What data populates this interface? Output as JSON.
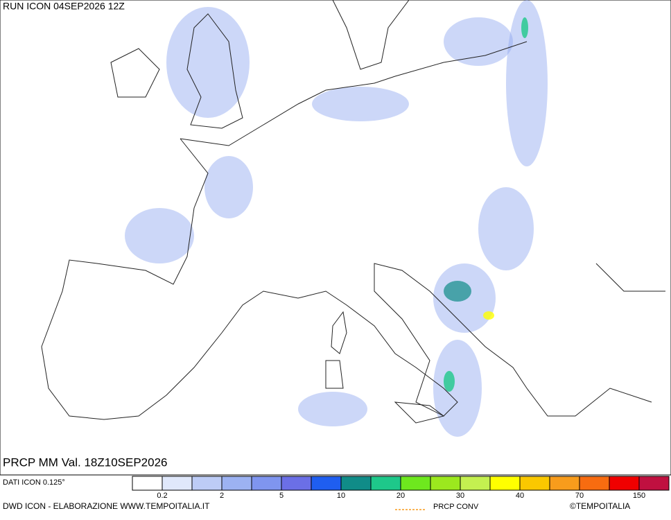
{
  "header": {
    "run": "RUN ICON 04SEP2026 12Z",
    "product": "PRCP MM Val. 18Z10SEP2026"
  },
  "footer": {
    "source": "DATI ICON 0.125°",
    "credit": "DWD ICON - ELABORAZIONE WWW.TEMPOITALIA.IT",
    "conv_legend": "PRCP CONV",
    "copyright": "©TEMPOITALIA"
  },
  "colorbar": {
    "colors": [
      "#ffffff",
      "#e0e8fb",
      "#bdccf6",
      "#9cb2f2",
      "#7f95ef",
      "#6b6fe6",
      "#1f5ef0",
      "#108c88",
      "#1ec88a",
      "#6ee81e",
      "#9ce81e",
      "#c4f050",
      "#ffff00",
      "#fac800",
      "#f89c1c",
      "#f86c10",
      "#f00000",
      "#c01040"
    ],
    "ticks": [
      0.2,
      2,
      5,
      10,
      20,
      30,
      40,
      70,
      150
    ]
  }
}
